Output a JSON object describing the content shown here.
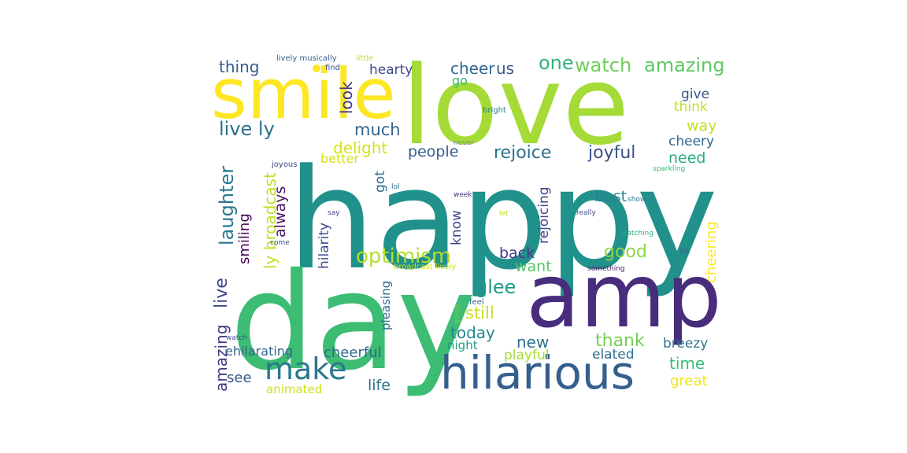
{
  "title": "",
  "words": [
    {
      "text": "happy",
      "color": "#21918c"
    },
    {
      "text": "day",
      "color": "#3dbc74"
    },
    {
      "text": "love",
      "color": "#a5db36"
    },
    {
      "text": "amp",
      "color": "#472d7b"
    },
    {
      "text": "smile",
      "color": "#fde725"
    },
    {
      "text": "hilarious",
      "color": "#355f8d"
    },
    {
      "text": "make",
      "color": "#2a788e"
    },
    {
      "text": "optimism",
      "color": "#b5de2b"
    },
    {
      "text": "watch",
      "color": "#6ece58"
    },
    {
      "text": "amazing",
      "color": "#5ec962"
    },
    {
      "text": "one",
      "color": "#2fb47c"
    },
    {
      "text": "cheer",
      "color": "#31688e"
    },
    {
      "text": "us",
      "color": "#38588c"
    },
    {
      "text": "thing",
      "color": "#365c8d"
    },
    {
      "text": "hearty",
      "color": "#3e4989"
    },
    {
      "text": "go",
      "color": "#35b779"
    },
    {
      "text": "look",
      "color": "#443983"
    },
    {
      "text": "live ly",
      "color": "#2c718e"
    },
    {
      "text": "much",
      "color": "#33638d"
    },
    {
      "text": "delight",
      "color": "#d8e219"
    },
    {
      "text": "people",
      "color": "#355f8d"
    },
    {
      "text": "rejoice",
      "color": "#2c728e"
    },
    {
      "text": "joyful",
      "color": "#3b528b"
    },
    {
      "text": "give",
      "color": "#3a548c"
    },
    {
      "text": "think",
      "color": "#bddf26"
    },
    {
      "text": "way",
      "color": "#c0df25"
    },
    {
      "text": "cheery",
      "color": "#31688e"
    },
    {
      "text": "need",
      "color": "#29af7f"
    },
    {
      "text": "better",
      "color": "#d5e21a"
    },
    {
      "text": "got",
      "color": "#2c728e"
    },
    {
      "text": "always",
      "color": "#481668"
    },
    {
      "text": "laughter",
      "color": "#2a788e"
    },
    {
      "text": "ly broadcast",
      "color": "#c2df23"
    },
    {
      "text": "smiling",
      "color": "#440154"
    },
    {
      "text": "live",
      "color": "#3f4788"
    },
    {
      "text": "amazing",
      "color": "#453781"
    },
    {
      "text": "hilarity",
      "color": "#3e4c8a"
    },
    {
      "text": "know",
      "color": "#3f4889"
    },
    {
      "text": "rejoicing",
      "color": "#3f4788"
    },
    {
      "text": "best",
      "color": "#26828e"
    },
    {
      "text": "good",
      "color": "#8ed645"
    },
    {
      "text": "back",
      "color": "#443b84"
    },
    {
      "text": "want",
      "color": "#54c568"
    },
    {
      "text": "glee",
      "color": "#1f9a8a"
    },
    {
      "text": "still",
      "color": "#c8e020"
    },
    {
      "text": "today",
      "color": "#23898e"
    },
    {
      "text": "night",
      "color": "#1e9c89"
    },
    {
      "text": "new",
      "color": "#2c728e"
    },
    {
      "text": "thank",
      "color": "#74d055"
    },
    {
      "text": "breezy",
      "color": "#2a768e"
    },
    {
      "text": "playful",
      "color": "#a8db34"
    },
    {
      "text": "elated",
      "color": "#2d708e"
    },
    {
      "text": "time",
      "color": "#3dbc74"
    },
    {
      "text": "great",
      "color": "#f1e51d"
    },
    {
      "text": "cheering",
      "color": "#fde725"
    },
    {
      "text": "pleasing",
      "color": "#2e6e8e"
    },
    {
      "text": "ehilarating",
      "color": "#33638d"
    },
    {
      "text": "cheerful",
      "color": "#31688e"
    },
    {
      "text": "see",
      "color": "#38588c"
    },
    {
      "text": "life",
      "color": "#2d708e"
    },
    {
      "text": "animated",
      "color": "#cde11d"
    },
    {
      "text": "lively musically",
      "color": "#355f8d"
    },
    {
      "text": "little",
      "color": "#b8de29"
    },
    {
      "text": "find",
      "color": "#3b528b"
    },
    {
      "text": "bright",
      "color": "#287d8e"
    },
    {
      "text": "never",
      "color": "#7e8ea5"
    },
    {
      "text": "joyous",
      "color": "#3e4a89"
    },
    {
      "text": "lol",
      "color": "#2e6f8e"
    },
    {
      "text": "week",
      "color": "#46327e"
    },
    {
      "text": "say",
      "color": "#404688"
    },
    {
      "text": "come",
      "color": "#3a548c"
    },
    {
      "text": "broadcast lively",
      "color": "#cfe11c"
    },
    {
      "text": "let",
      "color": "#b5de2b"
    },
    {
      "text": "show",
      "color": "#2a788e"
    },
    {
      "text": "really",
      "color": "#3b518b"
    },
    {
      "text": "sparkling",
      "color": "#38b977"
    },
    {
      "text": "watching",
      "color": "#2ab07f"
    },
    {
      "text": "lot",
      "color": "#33638d"
    },
    {
      "text": "something",
      "color": "#481a6c"
    },
    {
      "text": "feel",
      "color": "#31678e"
    },
    {
      "text": "going",
      "color": "#6ccd5a"
    },
    {
      "text": "watch",
      "color": "#3b518b"
    }
  ]
}
